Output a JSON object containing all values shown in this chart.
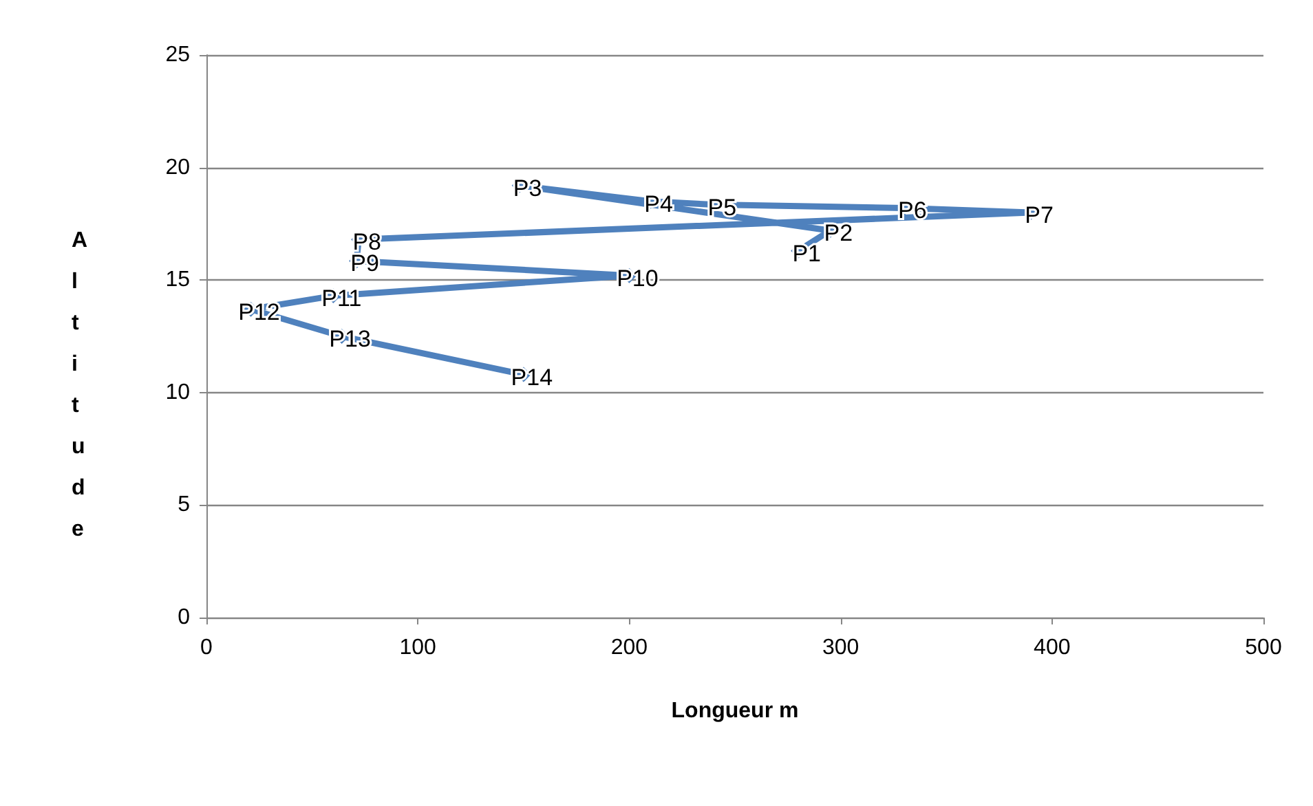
{
  "chart_data": {
    "type": "line",
    "xlabel": "Longueur m",
    "ylabel": "Altitude",
    "x": [
      280,
      295,
      148,
      210,
      240,
      330,
      390,
      72,
      71,
      200,
      60,
      21,
      64,
      150
    ],
    "series": [
      {
        "color": "#4f81bd",
        "values": [
          16.3,
          17.2,
          19.2,
          18.5,
          18.35,
          18.2,
          18.0,
          16.8,
          15.85,
          15.2,
          14.3,
          13.7,
          12.5,
          10.8
        ],
        "value_labels": [
          "P1",
          "P2",
          "P3",
          "P4",
          "P5",
          "P6",
          "P7",
          "P8",
          "P9",
          "P10",
          "P11",
          "P12",
          "P13",
          "P14"
        ]
      }
    ],
    "xlim": [
      0,
      500
    ],
    "xticks": [
      0,
      100,
      200,
      300,
      400,
      500
    ],
    "ylim": [
      0,
      25
    ],
    "yticks": [
      0,
      5,
      10,
      15,
      20,
      25
    ],
    "grid": "y",
    "marker": "diamond",
    "line_style": "solid"
  }
}
